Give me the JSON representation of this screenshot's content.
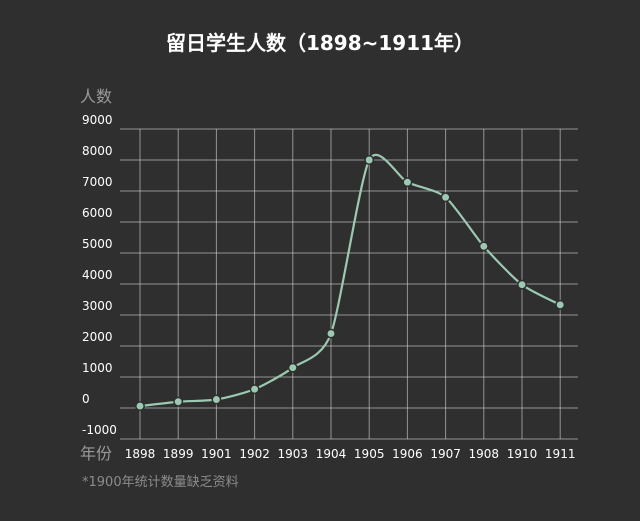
{
  "chart_data": {
    "type": "line",
    "title": "留日学生人数（1898~1911年）",
    "ylabel": "人数",
    "xlabel": "年份",
    "note": "*1900年统计数量缺乏资料",
    "categories": [
      "1898",
      "1899",
      "1901",
      "1902",
      "1903",
      "1904",
      "1905",
      "1906",
      "1907",
      "1908",
      "1910",
      "1911"
    ],
    "series": [
      {
        "values": [
          61,
          202,
          274,
          608,
          1300,
          2400,
          8000,
          7283,
          6797,
          5216,
          3979,
          3328
        ]
      }
    ],
    "yticks": [
      "9000",
      "8000",
      "7000",
      "6000",
      "5000",
      "4000",
      "3000",
      "2000",
      "1000",
      "0",
      "-1000"
    ],
    "ylim": [
      -1000,
      9000
    ],
    "grid": true,
    "line_color": "#9cc9b1"
  }
}
